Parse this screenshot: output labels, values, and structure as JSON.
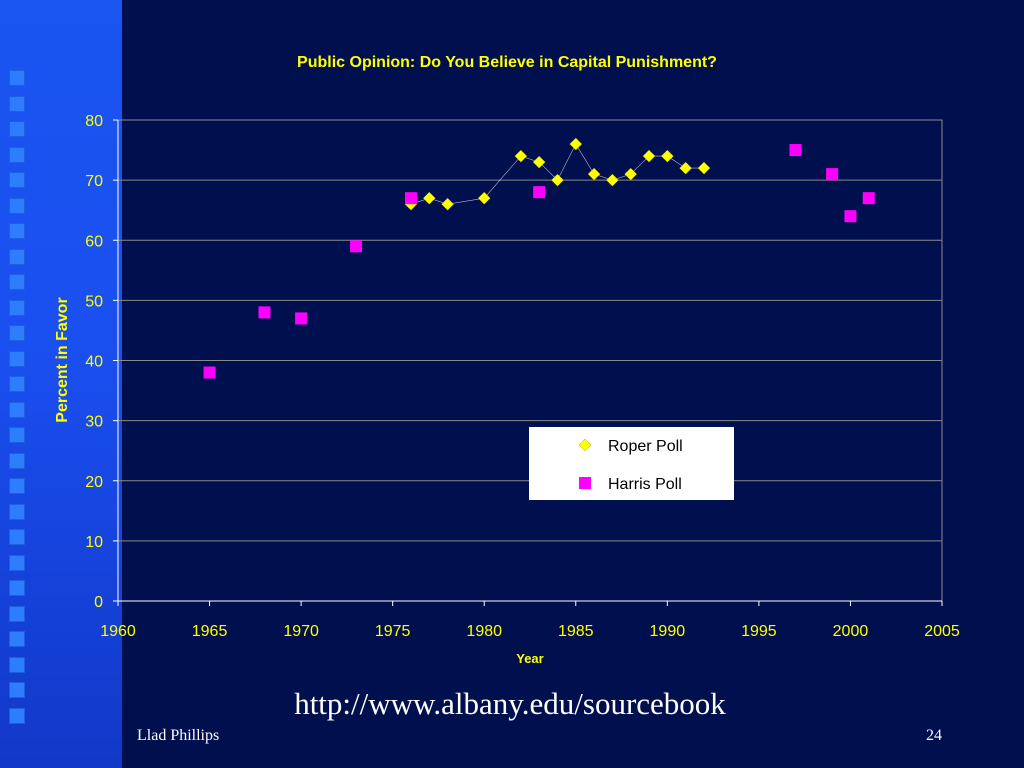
{
  "slide": {
    "url": "http://www.albany.edu/sourcebook",
    "author": "Llad Phillips",
    "page_number": "24"
  },
  "colors": {
    "background": "#000f4d",
    "band": "#1a4ff0",
    "text": "#ffff00",
    "roper": "#ffff00",
    "harris": "#ff00ff"
  },
  "chart_data": {
    "type": "scatter",
    "title": "Public Opinion: Do You Believe in Capital Punishment?",
    "xlabel": "Year",
    "ylabel": "Percent in Favor",
    "xlim": [
      1960,
      2005
    ],
    "ylim": [
      0,
      80
    ],
    "x_ticks": [
      1960,
      1965,
      1970,
      1975,
      1980,
      1985,
      1990,
      1995,
      2000,
      2005
    ],
    "y_ticks": [
      0,
      10,
      20,
      30,
      40,
      50,
      60,
      70,
      80
    ],
    "grid": true,
    "legend_position": "lower-right",
    "series": [
      {
        "name": "Roper Poll",
        "marker": "diamond",
        "line": true,
        "x": [
          1976,
          1977,
          1978,
          1980,
          1982,
          1983,
          1984,
          1985,
          1986,
          1987,
          1988,
          1989,
          1990,
          1991,
          1992
        ],
        "y": [
          66,
          67,
          66,
          67,
          74,
          73,
          70,
          76,
          71,
          70,
          71,
          74,
          74,
          72,
          72
        ]
      },
      {
        "name": "Harris Poll",
        "marker": "square",
        "line": false,
        "x": [
          1965,
          1968,
          1970,
          1973,
          1976,
          1983,
          1997,
          1999,
          2000,
          2001
        ],
        "y": [
          38,
          48,
          47,
          59,
          67,
          68,
          75,
          71,
          64,
          67
        ]
      }
    ]
  }
}
